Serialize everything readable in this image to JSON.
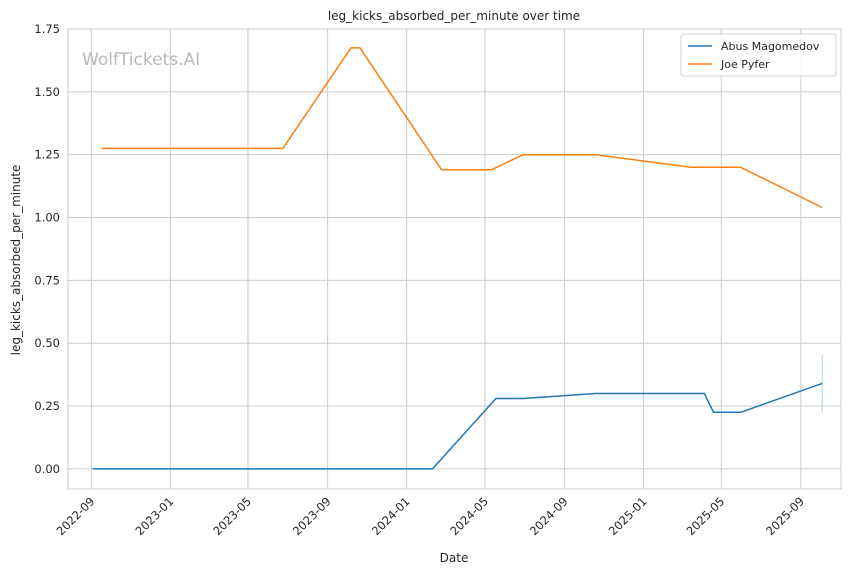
{
  "watermark": "WolfTickets.AI",
  "chart_data": {
    "type": "line",
    "title": "leg_kicks_absorbed_per_minute over time",
    "xlabel": "Date",
    "ylabel": "leg_kicks_absorbed_per_minute",
    "x_axis_type": "date",
    "xlim": [
      "2022-07-27",
      "2025-11-02"
    ],
    "ylim": [
      -0.08,
      1.75
    ],
    "x_ticks": [
      "2022-09",
      "2023-01",
      "2023-05",
      "2023-09",
      "2024-01",
      "2024-05",
      "2024-09",
      "2025-01",
      "2025-05",
      "2025-09"
    ],
    "y_ticks": [
      "0.00",
      "0.25",
      "0.50",
      "0.75",
      "1.00",
      "1.25",
      "1.50",
      "1.75"
    ],
    "grid": true,
    "legend_position": "top-right",
    "series": [
      {
        "name": "Abus Magomedov",
        "color": "#1f77b4",
        "points": [
          [
            "2022-09-03",
            0.0
          ],
          [
            "2024-02-10",
            0.0
          ],
          [
            "2024-05-18",
            0.28
          ],
          [
            "2024-06-29",
            0.28
          ],
          [
            "2024-10-19",
            0.3
          ],
          [
            "2025-04-05",
            0.3
          ],
          [
            "2025-04-19",
            0.225
          ],
          [
            "2025-05-31",
            0.225
          ],
          [
            "2025-10-04",
            0.34
          ]
        ],
        "error_bar": {
          "x": "2025-10-04",
          "low": 0.225,
          "high": 0.455,
          "color": "#add8e6"
        }
      },
      {
        "name": "Joe Pyfer",
        "color": "#ff7f0e",
        "points": [
          [
            "2022-09-17",
            1.275
          ],
          [
            "2023-06-24",
            1.275
          ],
          [
            "2023-10-07",
            1.675
          ],
          [
            "2023-10-21",
            1.675
          ],
          [
            "2024-02-24",
            1.19
          ],
          [
            "2024-05-11",
            1.19
          ],
          [
            "2024-06-29",
            1.25
          ],
          [
            "2024-10-19",
            1.25
          ],
          [
            "2025-03-15",
            1.2
          ],
          [
            "2025-05-31",
            1.2
          ],
          [
            "2025-10-04",
            1.04
          ]
        ]
      }
    ]
  }
}
